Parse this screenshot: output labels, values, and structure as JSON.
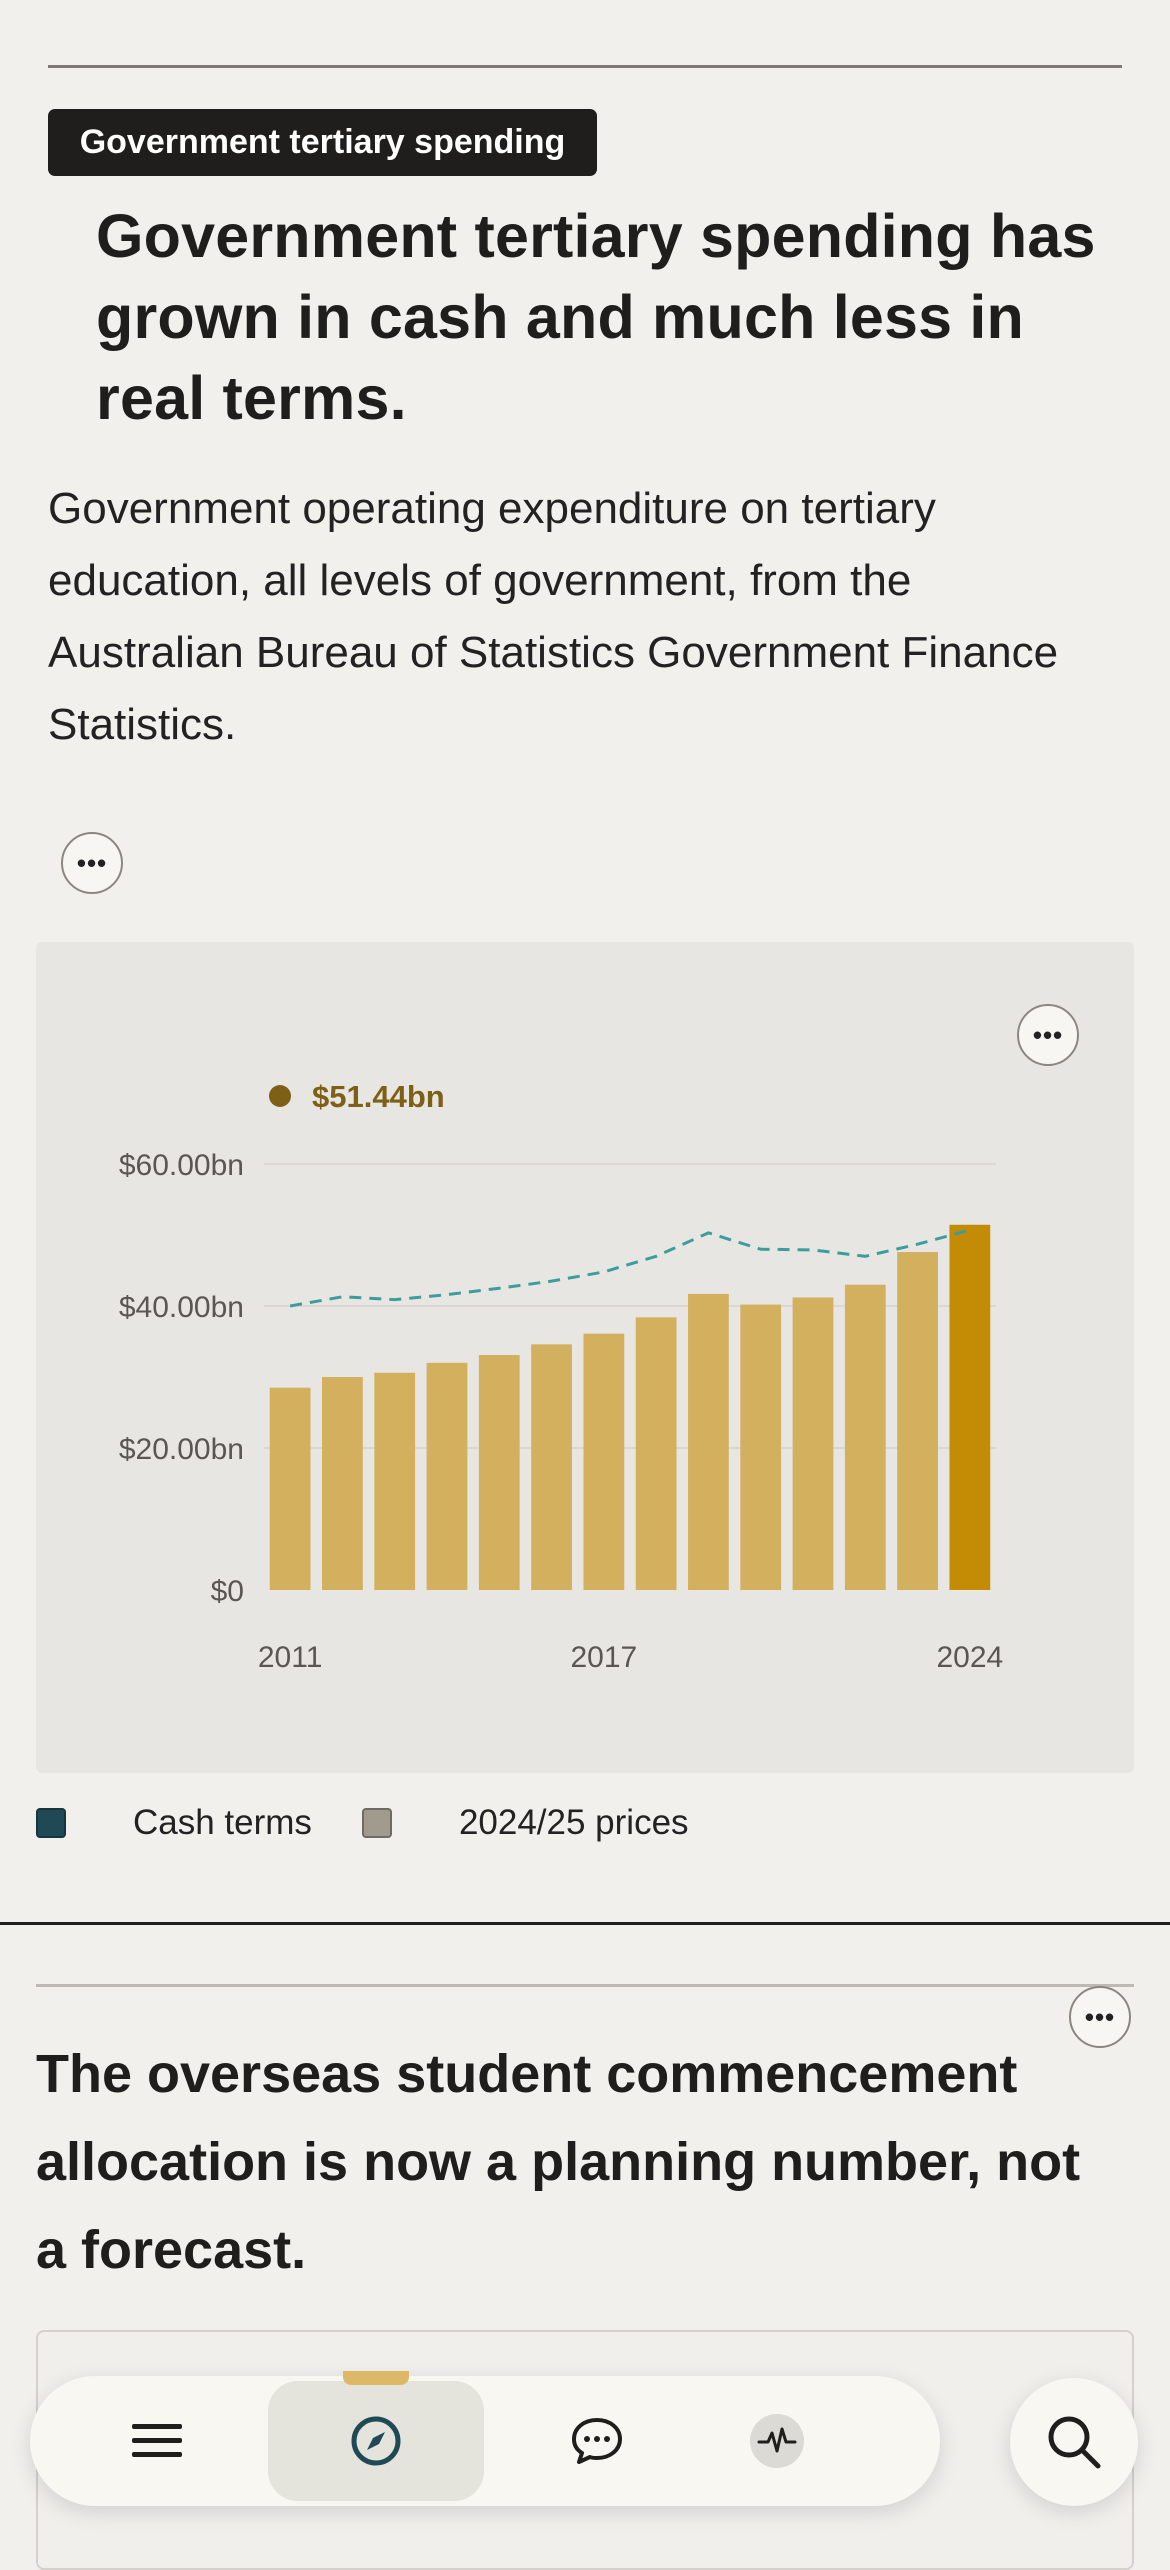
{
  "article": {
    "tag": "Government tertiary spending",
    "headline": "Government tertiary spending has grown in cash and much less in real terms.",
    "description": "Government operating expenditure on tertiary education, all levels of government, from the Australian Bureau of Statistics Government Finance Statistics.",
    "options_label": "•••"
  },
  "chart": {
    "options_label": "•••",
    "highlight_value": "$51.44bn",
    "legend": [
      {
        "label": "Cash terms",
        "color": "#1f4a55"
      },
      {
        "label": "2024/25 prices",
        "color": "#a09b8c"
      }
    ]
  },
  "chart_data": {
    "type": "bar",
    "x": [
      2011,
      2012,
      2013,
      2014,
      2015,
      2016,
      2017,
      2018,
      2019,
      2020,
      2021,
      2022,
      2023,
      2024
    ],
    "x_tick_labels": [
      "2011",
      "2017",
      "2024"
    ],
    "y_tick_labels": [
      "$0",
      "$20.00bn",
      "$40.00bn",
      "$60.00bn"
    ],
    "ylim": [
      0,
      60
    ],
    "series": [
      {
        "name": "Cash terms",
        "kind": "bar",
        "color": "#d3b05e",
        "highlight_color": "#c48c04",
        "values": [
          28.5,
          30.0,
          30.6,
          32.0,
          33.1,
          34.6,
          36.1,
          38.4,
          41.7,
          40.2,
          41.2,
          43.0,
          47.6,
          51.44
        ]
      },
      {
        "name": "2024/25 prices",
        "kind": "line",
        "dashed": true,
        "color": "#3c9e9c",
        "values": [
          40.0,
          41.3,
          40.9,
          41.6,
          42.5,
          43.5,
          44.8,
          47.0,
          50.3,
          48.0,
          47.9,
          47.0,
          48.7,
          50.7
        ]
      }
    ]
  },
  "section2": {
    "options_label": "•••",
    "headline": "The overseas student commencement allocation is now a planning number, not a forecast."
  },
  "nav": {
    "items": [
      {
        "icon": "menu-icon"
      },
      {
        "icon": "compass-icon",
        "active": true
      },
      {
        "icon": "chat-icon"
      },
      {
        "icon": "pulse-icon"
      }
    ],
    "search_icon": "search-icon"
  }
}
